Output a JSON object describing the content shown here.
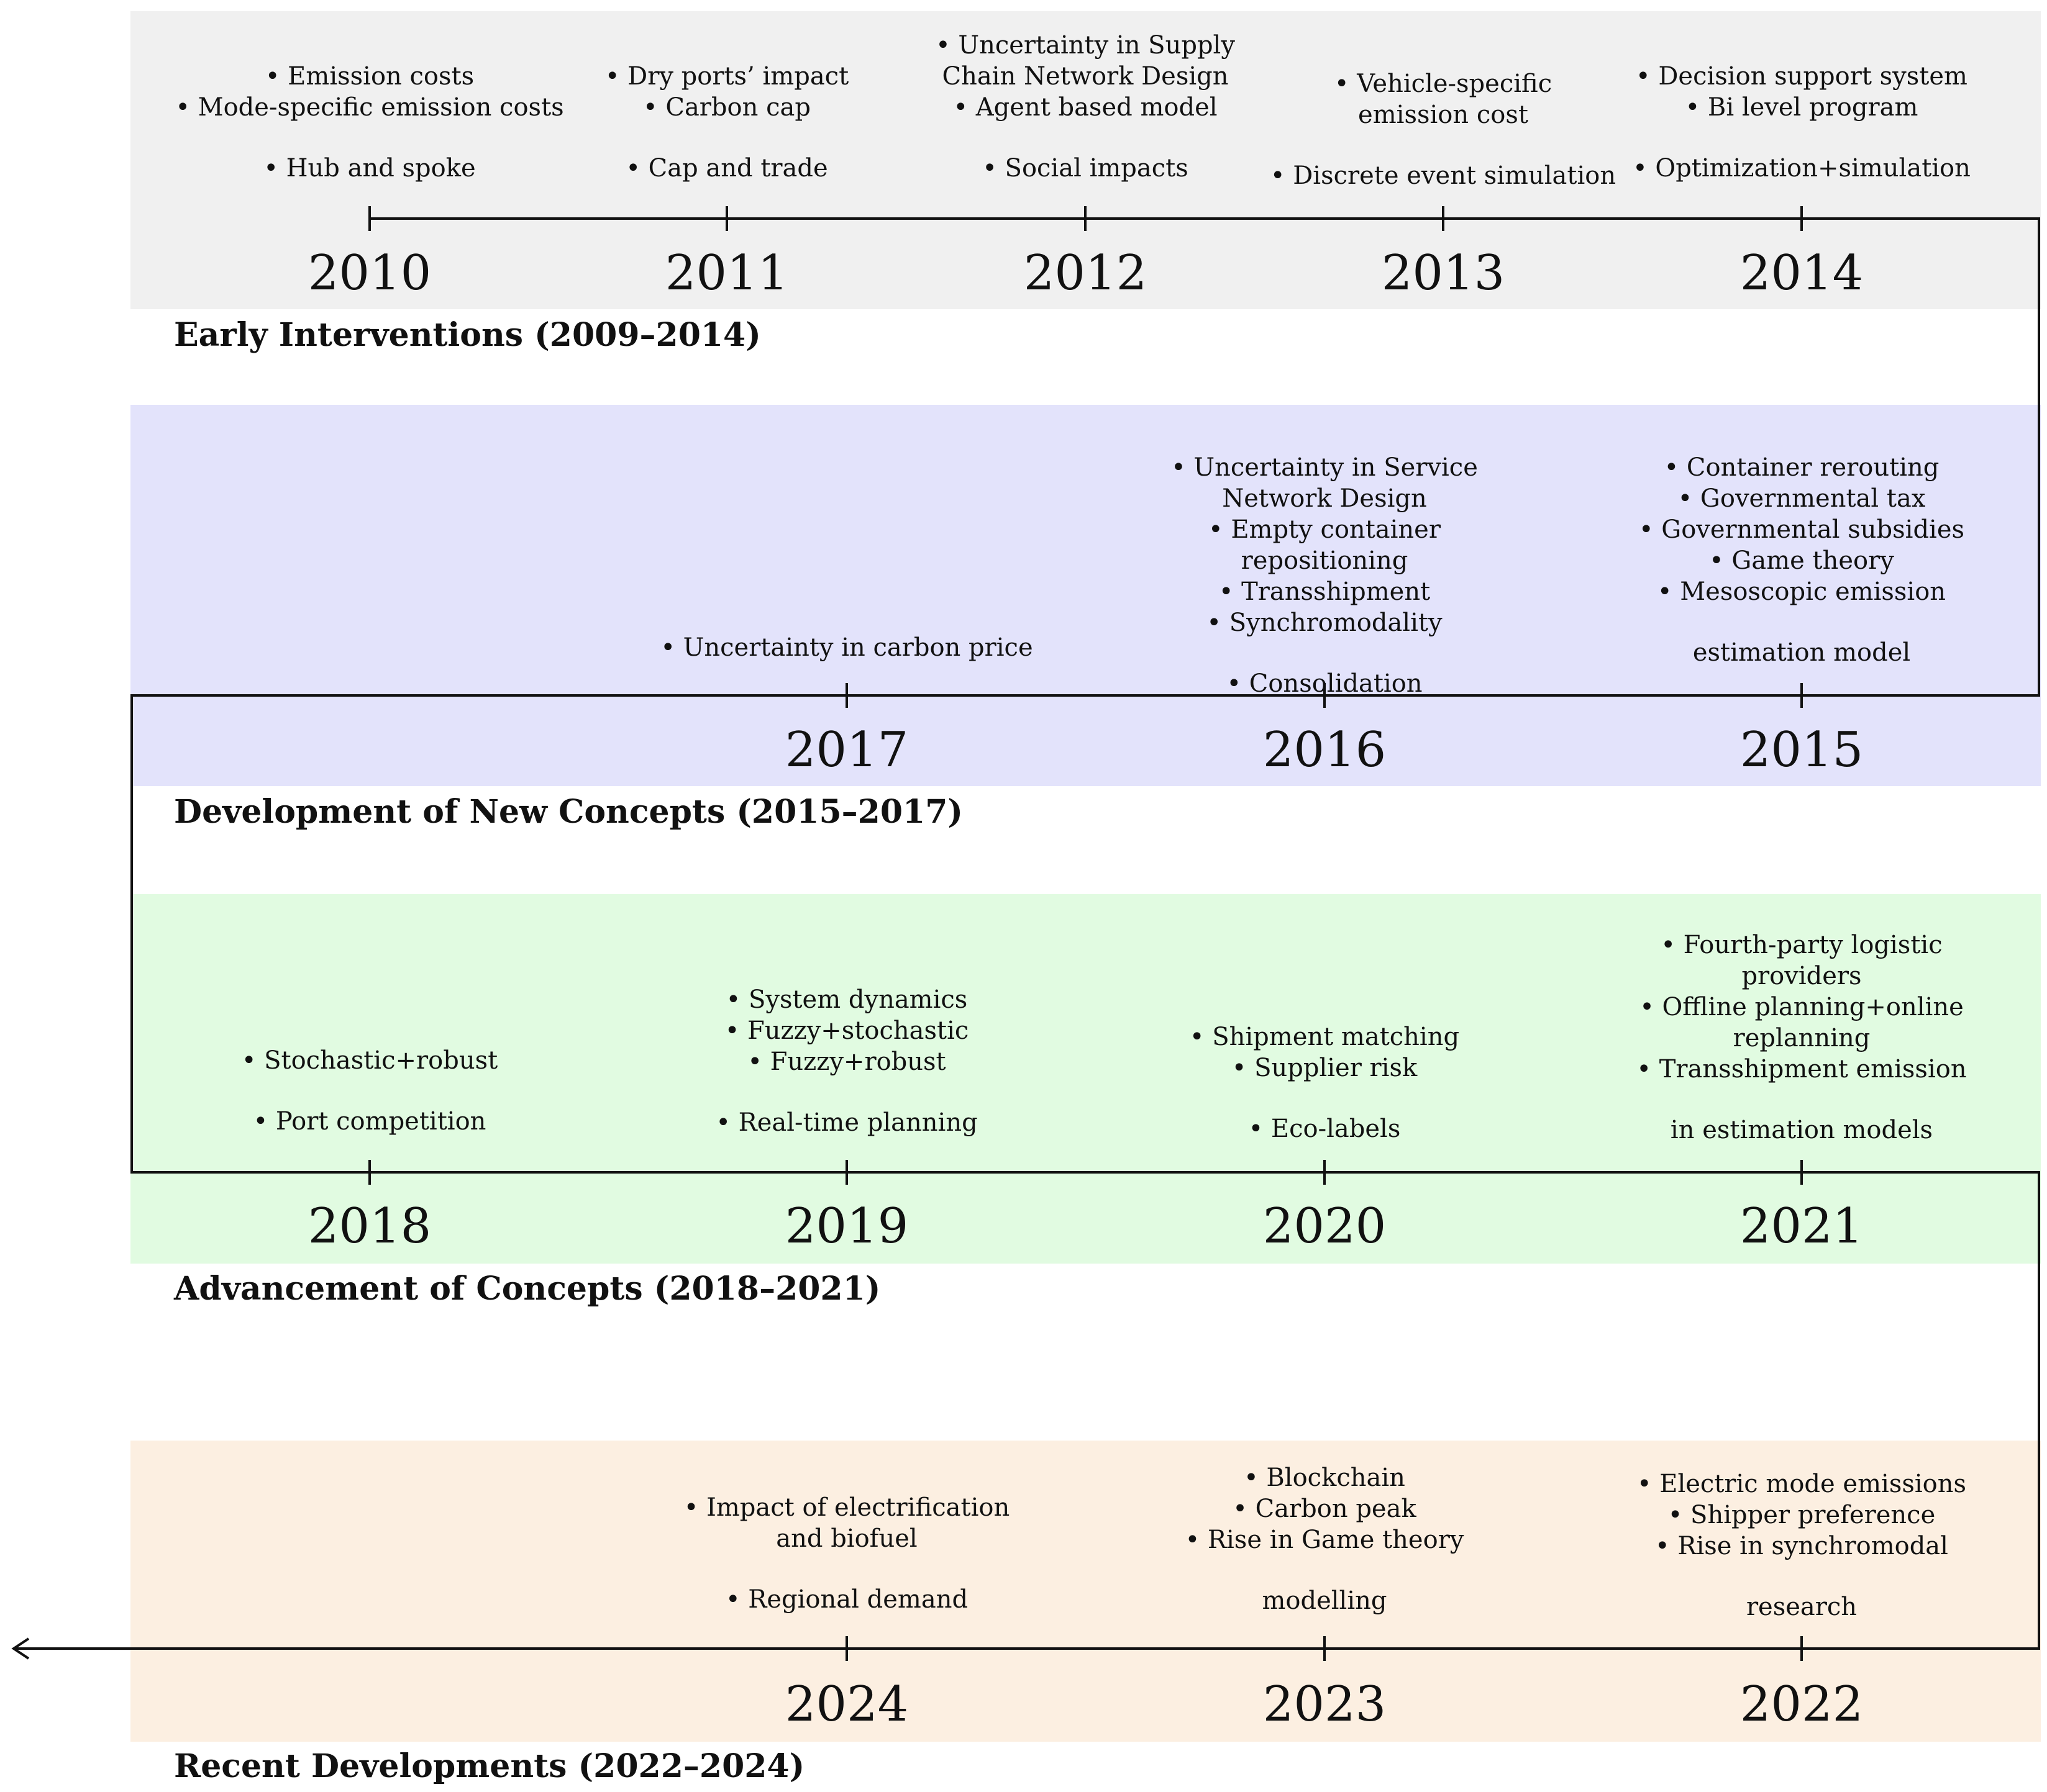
{
  "eras": [
    {
      "label": "Early Interventions (2009–2014)"
    },
    {
      "label": "Development of New Concepts (2015–2017)"
    },
    {
      "label": "Advancement of Concepts (2018–2021)"
    },
    {
      "label": "Recent Developments (2022–2024)"
    }
  ],
  "years": {
    "y2010": {
      "label": "2010",
      "items": [
        "• Emission costs",
        "• Mode-specific emission costs",
        "• Hub and spoke"
      ]
    },
    "y2011": {
      "label": "2011",
      "items": [
        "• Dry ports’ impact",
        "• Carbon cap",
        "• Cap and trade"
      ]
    },
    "y2012": {
      "label": "2012",
      "items": [
        "• Uncertainty in Supply",
        "Chain Network Design",
        "• Agent based model",
        "• Social impacts"
      ]
    },
    "y2013": {
      "label": "2013",
      "items": [
        "• Vehicle-specific",
        "emission cost",
        "• Discrete event simulation"
      ]
    },
    "y2014": {
      "label": "2014",
      "items": [
        "• Decision support system",
        "• Bi level program",
        "• Optimization+simulation"
      ]
    },
    "y2015": {
      "label": "2015",
      "items": [
        "• Container rerouting",
        "• Governmental tax",
        "• Governmental subsidies",
        "• Game theory",
        "• Mesoscopic emission",
        "estimation model"
      ]
    },
    "y2016": {
      "label": "2016",
      "items": [
        "• Uncertainty in Service",
        "Network Design",
        "• Empty container repositioning",
        "• Transshipment",
        "• Synchromodality",
        "• Consolidation"
      ]
    },
    "y2017": {
      "label": "2017",
      "items": [
        "• Uncertainty in carbon price"
      ]
    },
    "y2018": {
      "label": "2018",
      "items": [
        "• Stochastic+robust",
        "• Port competition"
      ]
    },
    "y2019": {
      "label": "2019",
      "items": [
        "• System dynamics",
        "• Fuzzy+stochastic",
        "• Fuzzy+robust",
        "• Real-time planning"
      ]
    },
    "y2020": {
      "label": "2020",
      "items": [
        "• Shipment matching",
        "• Supplier risk",
        "• Eco-labels"
      ]
    },
    "y2021": {
      "label": "2021",
      "items": [
        "• Fourth-party logistic",
        "providers",
        "• Offline planning+online",
        "replanning",
        "• Transshipment emission",
        "in estimation models"
      ]
    },
    "y2022": {
      "label": "2022",
      "items": [
        "• Electric mode emissions",
        "• Shipper preference",
        "• Rise in synchromodal",
        "research"
      ]
    },
    "y2023": {
      "label": "2023",
      "items": [
        "• Blockchain",
        "• Carbon peak",
        "• Rise in Game theory",
        "modelling"
      ]
    },
    "y2024": {
      "label": "2024",
      "items": [
        "• Impact of electrification",
        "and biofuel",
        "• Regional demand"
      ]
    }
  }
}
